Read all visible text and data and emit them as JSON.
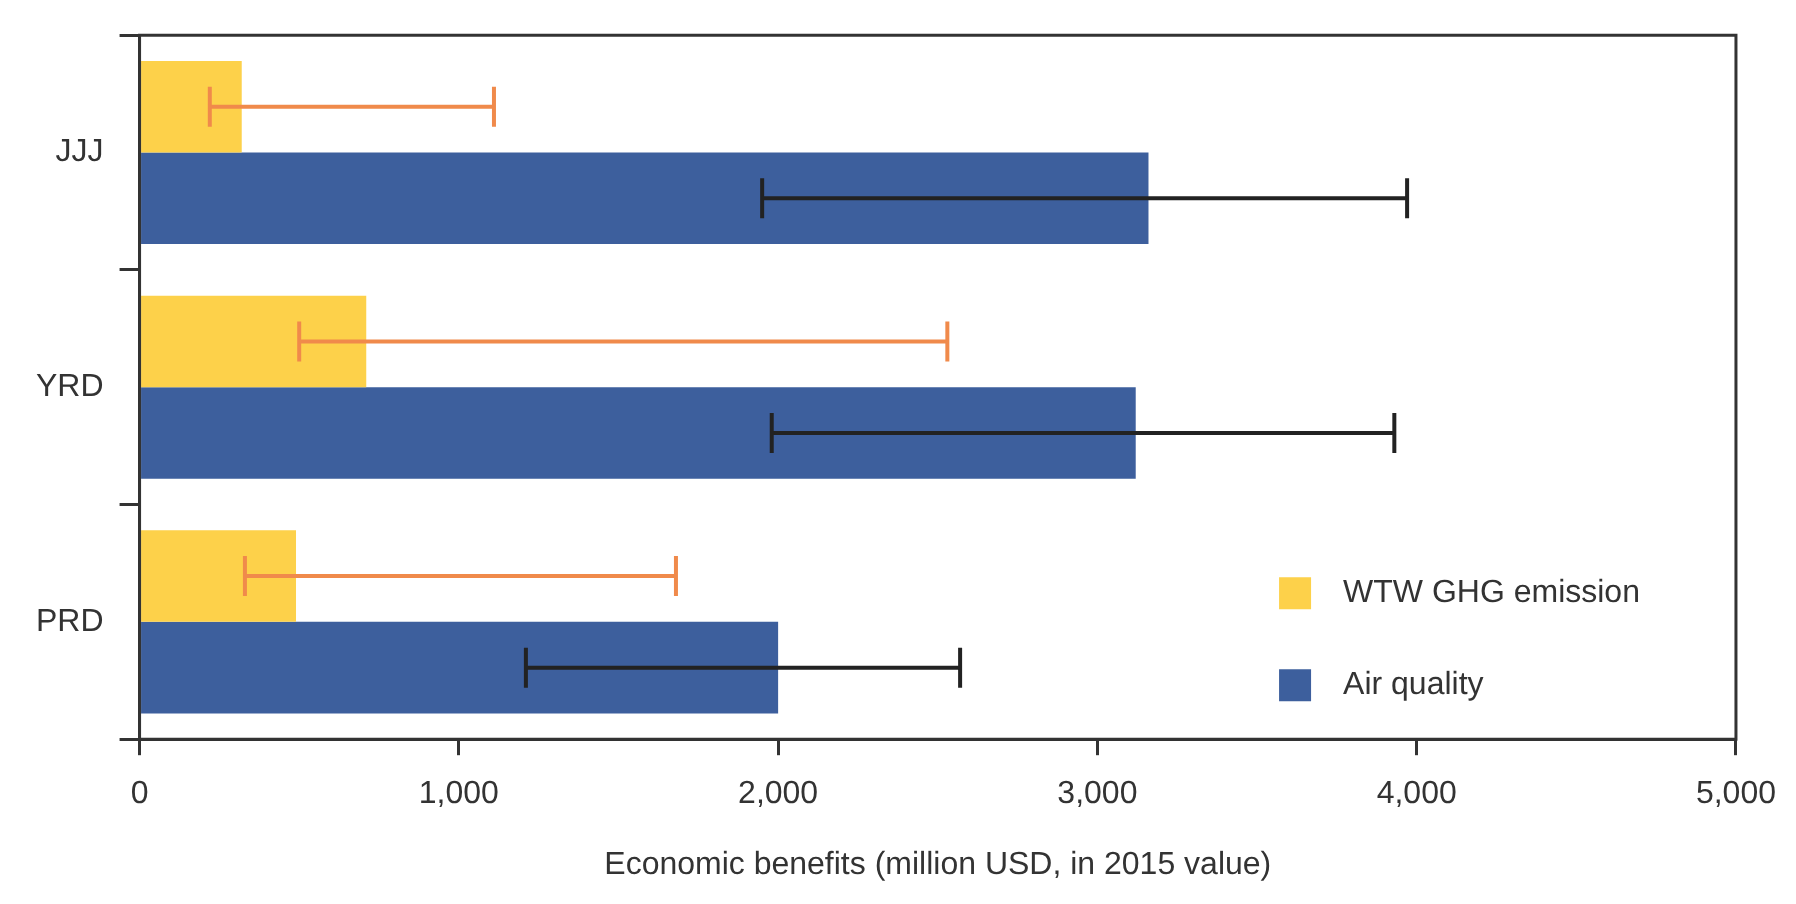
{
  "chart_data": {
    "type": "bar",
    "orientation": "horizontal",
    "xlabel": "Economic benefits (million USD, in 2015 value)",
    "categories": [
      "JJJ",
      "YRD",
      "PRD"
    ],
    "series": [
      {
        "name": "WTW GHG emission",
        "color": "#fdd14a",
        "values": [
          320,
          710,
          490
        ],
        "errors": [
          [
            220,
            1110
          ],
          [
            500,
            2530
          ],
          [
            330,
            1680
          ]
        ]
      },
      {
        "name": "Air quality",
        "color": "#3d5f9d",
        "values": [
          3160,
          3120,
          2000
        ],
        "errors": [
          [
            1950,
            3970
          ],
          [
            1980,
            3930
          ],
          [
            1210,
            2570
          ]
        ]
      }
    ],
    "xlim": [
      0,
      5000
    ],
    "xticks": [
      {
        "value": 0,
        "label": "0"
      },
      {
        "value": 1000,
        "label": "1,000"
      },
      {
        "value": 2000,
        "label": "2,000"
      },
      {
        "value": 3000,
        "label": "3,000"
      },
      {
        "value": 4000,
        "label": "4,000"
      },
      {
        "value": 5000,
        "label": "5,000"
      }
    ],
    "grid": false,
    "legend": "bottom right"
  }
}
